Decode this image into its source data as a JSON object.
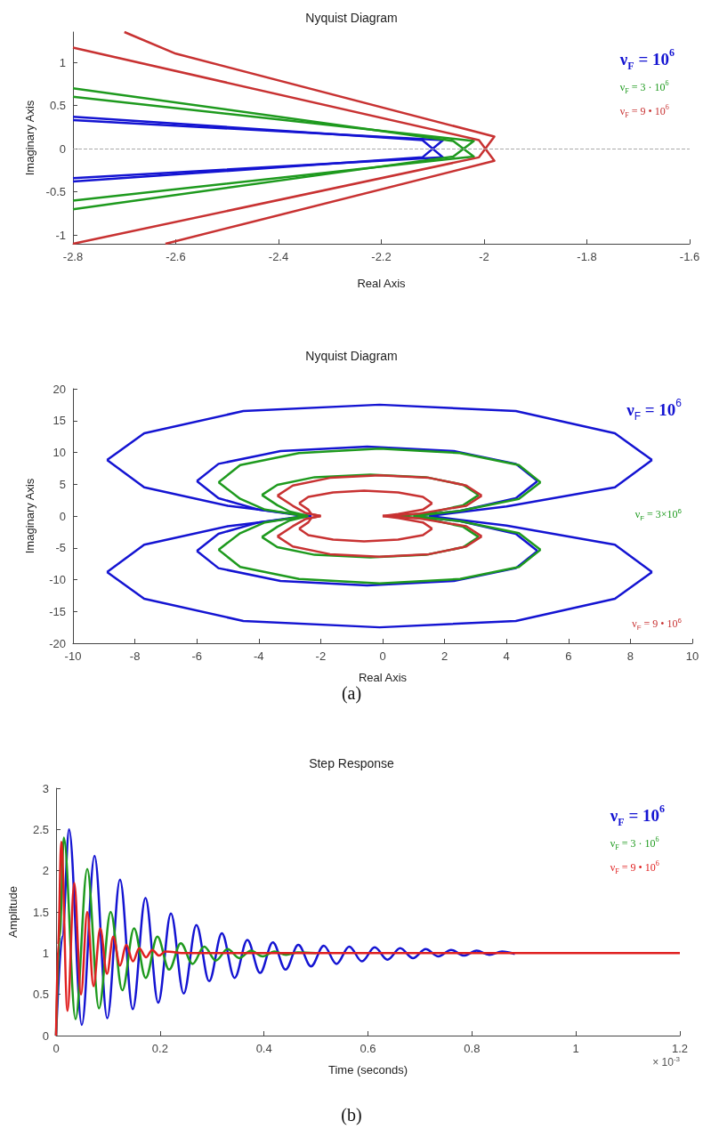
{
  "chart_data": [
    {
      "type": "line",
      "title": "Nyquist Diagram",
      "xlabel": "Real Axis",
      "ylabel": "Imaginary Axis",
      "xlim": [
        -2.8,
        -1.6
      ],
      "xticks": [
        -2.8,
        -2.6,
        -2.4,
        -2.2,
        -2,
        -1.8,
        -1.6
      ],
      "ylim": [
        -1.1,
        1.35
      ],
      "yticks": [
        -1,
        -0.5,
        0,
        0.5,
        1
      ],
      "legend": "top right",
      "ref_lines": [
        {
          "axis": "y",
          "value": 0,
          "line_style": "dashed",
          "color": "#aaaaaa"
        }
      ],
      "series": [
        {
          "name": "ν$_{F}$ = 10$^{6}$",
          "color": "#1414d2",
          "x": [
            -2.8,
            -2.12,
            -2.08,
            -2.8
          ],
          "values": [
            0.37,
            0.1,
            -0.1,
            -0.34
          ]
        },
        {
          "color": "#1414d2",
          "x": [
            -2.8,
            -2.08,
            -2.12,
            -2.8
          ],
          "values": [
            0.33,
            0.1,
            -0.1,
            -0.38
          ]
        },
        {
          "name": "ν$_{F}$ = 3 · 10$^{6}$",
          "color": "#1e9a1e",
          "x": [
            -2.8,
            -2.06,
            -2.02,
            -2.8
          ],
          "values": [
            0.7,
            0.09,
            -0.09,
            -0.6
          ]
        },
        {
          "color": "#1e9a1e",
          "x": [
            -2.8,
            -2.02,
            -2.06,
            -2.8
          ],
          "values": [
            0.6,
            0.09,
            -0.09,
            -0.7
          ]
        },
        {
          "name": "ν$_{F}$ = 9 • 10$^{6}$",
          "color": "#c83232",
          "x": [
            -2.8,
            -2.01,
            -1.98,
            -2.62
          ],
          "values": [
            1.17,
            0.1,
            -0.14,
            -1.1
          ]
        },
        {
          "color": "#c83232",
          "x": [
            -2.7,
            -2.6,
            -1.98,
            -2.01,
            -2.8
          ],
          "values": [
            1.35,
            1.1,
            0.14,
            -0.1,
            -1.1
          ]
        }
      ]
    },
    {
      "type": "line",
      "title": "Nyquist Diagram",
      "xlabel": "Real Axis",
      "ylabel": "Imaginary Axis",
      "xlim": [
        -10,
        10
      ],
      "xticks": [
        -10,
        -8,
        -6,
        -4,
        -2,
        0,
        2,
        4,
        6,
        8,
        10
      ],
      "ylim": [
        -20,
        20
      ],
      "yticks": [
        -20,
        -15,
        -10,
        -5,
        0,
        5,
        10,
        15,
        20
      ],
      "annotations": [
        "(a)"
      ],
      "series": [
        {
          "name": "ν$_{F}$ = 10$^{6}$",
          "color": "#1414d2",
          "x": [
            -8.9,
            -7.7,
            -4.5,
            -0.1,
            4.3,
            7.5,
            8.7
          ],
          "values": [
            8.8,
            13,
            16.5,
            17.5,
            16.5,
            13,
            8.8
          ]
        },
        {
          "color": "#1414d2",
          "x": [
            -8.9,
            -7.7,
            -5,
            -2.3
          ],
          "values": [
            8.8,
            4.5,
            1.6,
            0
          ]
        },
        {
          "color": "#1414d2",
          "x": [
            1.5,
            4,
            7.5,
            8.7
          ],
          "values": [
            0,
            1.5,
            4.5,
            8.8
          ]
        },
        {
          "color": "#1414d2",
          "x": [
            -8.9,
            -7.7,
            -4.5,
            -0.1,
            4.3,
            7.5,
            8.7
          ],
          "values": [
            -8.8,
            -13,
            -16.5,
            -17.5,
            -16.5,
            -13,
            -8.8
          ]
        },
        {
          "color": "#1414d2",
          "x": [
            -8.9,
            -7.7,
            -5,
            -2.3
          ],
          "values": [
            -8.8,
            -4.5,
            -1.6,
            0
          ]
        },
        {
          "color": "#1414d2",
          "x": [
            1.5,
            4,
            7.5,
            8.7
          ],
          "values": [
            0,
            -1.5,
            -4.5,
            -8.8
          ]
        },
        {
          "color": "#1414d2",
          "x": [
            -6,
            -5.3,
            -3.3,
            -0.5,
            2.3,
            4.3,
            5
          ],
          "values": [
            5.5,
            8.2,
            10.2,
            10.9,
            10.2,
            8.2,
            5.5
          ]
        },
        {
          "color": "#1414d2",
          "x": [
            -6,
            -5.3,
            -4,
            -2.5
          ],
          "values": [
            5.5,
            2.8,
            1,
            0
          ]
        },
        {
          "color": "#1414d2",
          "x": [
            1,
            2.5,
            4.3,
            5
          ],
          "values": [
            0,
            0.8,
            2.8,
            5.5
          ]
        },
        {
          "color": "#1414d2",
          "x": [
            -6,
            -5.3,
            -3.3,
            -0.5,
            2.3,
            4.3,
            5
          ],
          "values": [
            -5.5,
            -8.2,
            -10.2,
            -10.9,
            -10.2,
            -8.2,
            -5.5
          ]
        },
        {
          "color": "#1414d2",
          "x": [
            -6,
            -5.3,
            -4,
            -2.5
          ],
          "values": [
            -5.5,
            -2.8,
            -1,
            0
          ]
        },
        {
          "color": "#1414d2",
          "x": [
            1,
            2.5,
            4.3,
            5
          ],
          "values": [
            0,
            -0.8,
            -2.8,
            -5.5
          ]
        },
        {
          "name": "ν$_{F}$ = 3×10$^{6}$",
          "color": "#1e9a1e",
          "x": [
            -5.3,
            -4.6,
            -2.7,
            -0.1,
            2.5,
            4.4,
            5.1
          ],
          "values": [
            5.3,
            8,
            9.9,
            10.6,
            9.9,
            8,
            5.3
          ]
        },
        {
          "color": "#1e9a1e",
          "x": [
            -5.3,
            -4.6,
            -3.8,
            -2.5
          ],
          "values": [
            5.3,
            2.7,
            1,
            0
          ]
        },
        {
          "color": "#1e9a1e",
          "x": [
            1,
            2.5,
            4.4,
            5.1
          ],
          "values": [
            0,
            0.8,
            2.7,
            5.3
          ]
        },
        {
          "color": "#1e9a1e",
          "x": [
            -5.3,
            -4.6,
            -2.7,
            -0.1,
            2.5,
            4.4,
            5.1
          ],
          "values": [
            -5.3,
            -8,
            -9.9,
            -10.6,
            -9.9,
            -8,
            -5.3
          ]
        },
        {
          "color": "#1e9a1e",
          "x": [
            -5.3,
            -4.6,
            -3.8,
            -2.5
          ],
          "values": [
            -5.3,
            -2.7,
            -1,
            0
          ]
        },
        {
          "color": "#1e9a1e",
          "x": [
            1,
            2.5,
            4.4,
            5.1
          ],
          "values": [
            0,
            -0.8,
            -2.7,
            -5.3
          ]
        },
        {
          "color": "#1e9a1e",
          "x": [
            -3.9,
            -3.4,
            -2.2,
            -0.4,
            1.4,
            2.6,
            3.1
          ],
          "values": [
            3.3,
            4.9,
            6.1,
            6.5,
            6.1,
            4.9,
            3.3
          ]
        },
        {
          "color": "#1e9a1e",
          "x": [
            -3.9,
            -3.4,
            -3,
            -2.4
          ],
          "values": [
            3.3,
            1.7,
            0.7,
            0
          ]
        },
        {
          "color": "#1e9a1e",
          "x": [
            0.5,
            1.5,
            2.6,
            3.1
          ],
          "values": [
            0,
            0.5,
            1.7,
            3.3
          ]
        },
        {
          "color": "#1e9a1e",
          "x": [
            -3.9,
            -3.4,
            -2.2,
            -0.4,
            1.4,
            2.6,
            3.1
          ],
          "values": [
            -3.3,
            -4.9,
            -6.1,
            -6.5,
            -6.1,
            -4.9,
            -3.3
          ]
        },
        {
          "color": "#1e9a1e",
          "x": [
            -3.9,
            -3.4,
            -3,
            -2.4
          ],
          "values": [
            -3.3,
            -1.7,
            -0.7,
            0
          ]
        },
        {
          "color": "#1e9a1e",
          "x": [
            0.5,
            1.5,
            2.6,
            3.1
          ],
          "values": [
            0,
            -0.5,
            -1.7,
            -3.3
          ]
        },
        {
          "name": "ν$_{F}$ = 9 • 10$^{6}$",
          "color": "#c83232",
          "x": [
            -3.4,
            -2.9,
            -1.7,
            -0.1,
            1.5,
            2.7,
            3.2
          ],
          "values": [
            3.2,
            4.8,
            6,
            6.4,
            6,
            4.8,
            3.2
          ]
        },
        {
          "color": "#c83232",
          "x": [
            -3.4,
            -2.9,
            -2.5,
            -2
          ],
          "values": [
            3.2,
            1.6,
            0.5,
            0
          ]
        },
        {
          "color": "#c83232",
          "x": [
            0,
            1.2,
            2.7,
            3.2
          ],
          "values": [
            0,
            0.4,
            1.6,
            3.2
          ]
        },
        {
          "color": "#c83232",
          "x": [
            -3.4,
            -2.9,
            -1.7,
            -0.1,
            1.5,
            2.7,
            3.2
          ],
          "values": [
            -3.2,
            -4.8,
            -6,
            -6.4,
            -6,
            -4.8,
            -3.2
          ]
        },
        {
          "color": "#c83232",
          "x": [
            -3.4,
            -2.9,
            -2.5,
            -2
          ],
          "values": [
            -3.2,
            -1.6,
            -0.5,
            0
          ]
        },
        {
          "color": "#c83232",
          "x": [
            0,
            1.2,
            2.7,
            3.2
          ],
          "values": [
            0,
            -0.4,
            -1.6,
            -3.2
          ]
        },
        {
          "color": "#c83232",
          "x": [
            -2.7,
            -2.4,
            -1.6,
            -0.6,
            0.5,
            1.3,
            1.6
          ],
          "values": [
            2,
            3,
            3.7,
            4,
            3.7,
            3,
            2
          ]
        },
        {
          "color": "#c83232",
          "x": [
            -2.7,
            -2.4,
            -2.3,
            -2
          ],
          "values": [
            2,
            1,
            0.3,
            0
          ]
        },
        {
          "color": "#c83232",
          "x": [
            0,
            0.5,
            1.3,
            1.6
          ],
          "values": [
            0,
            0.3,
            1,
            2
          ]
        },
        {
          "color": "#c83232",
          "x": [
            -2.7,
            -2.4,
            -1.6,
            -0.6,
            0.5,
            1.3,
            1.6
          ],
          "values": [
            -2,
            -3,
            -3.7,
            -4,
            -3.7,
            -3,
            -2
          ]
        },
        {
          "color": "#c83232",
          "x": [
            -2.7,
            -2.4,
            -2.3,
            -2
          ],
          "values": [
            -2,
            -1,
            -0.3,
            0
          ]
        },
        {
          "color": "#c83232",
          "x": [
            0,
            0.5,
            1.3,
            1.6
          ],
          "values": [
            0,
            -0.3,
            -1,
            -2
          ]
        }
      ]
    },
    {
      "type": "line",
      "title": "Step Response",
      "xlabel": "Time (seconds)",
      "ylabel": "Amplitude",
      "xlim": [
        0,
        1.2
      ],
      "xticks": [
        0,
        0.2,
        0.4,
        0.6,
        0.8,
        1,
        1.2
      ],
      "ylim": [
        0,
        3
      ],
      "yticks": [
        0,
        0.5,
        1,
        1.5,
        2,
        2.5,
        3
      ],
      "legend": "top right",
      "annotations": [
        "× 10$^{-3}$",
        "(b)"
      ],
      "series": [
        {
          "name": "ν$_{F}$ = 10$^{6}$",
          "color": "#1414d2",
          "x": [
            0,
            0.012,
            0.025,
            0.0495,
            0.074,
            0.0985,
            0.123,
            0.1475,
            0.172,
            0.1965,
            0.221,
            0.2455,
            0.27,
            0.2945,
            0.319,
            0.3435,
            0.368,
            0.3925,
            0.417,
            0.4415,
            0.466,
            0.4905,
            0.515,
            0.5395,
            0.564,
            0.5885,
            0.613,
            0.6375,
            0.662,
            0.6865,
            0.711,
            0.7355,
            0.76,
            0.7845,
            0.809,
            0.8335,
            0.858,
            0.8825
          ],
          "values": [
            0,
            1.2,
            2.5,
            0.13,
            2.18,
            0.21,
            1.89,
            0.32,
            1.67,
            0.4,
            1.48,
            0.51,
            1.34,
            0.66,
            1.24,
            0.7,
            1.16,
            0.76,
            1.13,
            0.8,
            1.1,
            0.84,
            1.09,
            0.87,
            1.08,
            0.9,
            1.07,
            0.92,
            1.06,
            0.94,
            1.05,
            0.96,
            1.04,
            0.97,
            1.03,
            0.98,
            1.02,
            0.99
          ]
        },
        {
          "name": "ν$_{F}$ = 3 · 10$^{6}$",
          "color": "#1e9a1e",
          "x": [
            0,
            0.007,
            0.015,
            0.0375,
            0.06,
            0.0825,
            0.105,
            0.1275,
            0.15,
            0.1725,
            0.195,
            0.2175,
            0.24,
            0.2625,
            0.285,
            0.3075,
            0.33,
            0.3525,
            0.375,
            0.3975,
            0.42,
            0.4425,
            0.465,
            0.5
          ],
          "values": [
            0,
            1.2,
            2.4,
            0.2,
            2.02,
            0.33,
            1.5,
            0.55,
            1.3,
            0.7,
            1.2,
            0.8,
            1.12,
            0.87,
            1.08,
            0.91,
            1.05,
            0.94,
            1.03,
            0.96,
            1.02,
            0.98,
            1.01,
            1
          ]
        },
        {
          "name": "ν$_{F}$ = 9 • 10$^{6}$",
          "color": "#e02020",
          "x": [
            0,
            0.004,
            0.01,
            0.022,
            0.035,
            0.048,
            0.06,
            0.072,
            0.085,
            0.098,
            0.11,
            0.123,
            0.135,
            0.148,
            0.16,
            0.173,
            0.185,
            0.198,
            0.21,
            0.25,
            1.2
          ],
          "values": [
            0,
            1.1,
            2.35,
            0.3,
            1.85,
            0.5,
            1.5,
            0.6,
            1.3,
            0.75,
            1.2,
            0.85,
            1.1,
            0.9,
            1.06,
            0.95,
            1.04,
            0.97,
            1.02,
            1,
            1
          ]
        }
      ]
    }
  ]
}
